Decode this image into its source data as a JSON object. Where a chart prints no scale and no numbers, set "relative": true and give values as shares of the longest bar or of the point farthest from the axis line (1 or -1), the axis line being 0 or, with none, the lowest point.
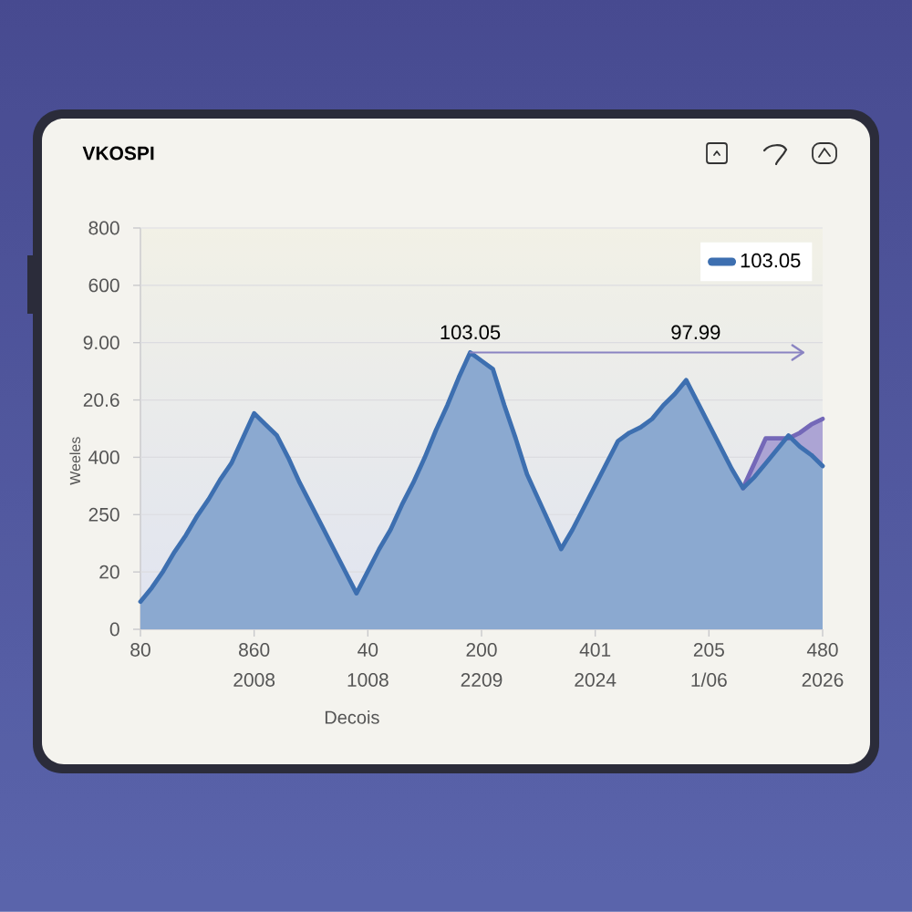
{
  "chart_data": {
    "type": "area",
    "relative": true,
    "title": "VKOSPI",
    "xlabel": "Decois",
    "ylabel": "Weeles",
    "categories": [
      "80",
      null,
      null,
      null,
      null,
      null,
      null,
      null,
      null,
      null,
      "860 2008",
      null,
      null,
      null,
      null,
      null,
      null,
      null,
      null,
      null,
      "40 1008",
      null,
      null,
      null,
      null,
      null,
      null,
      null,
      null,
      null,
      "200 2209",
      null,
      null,
      null,
      null,
      null,
      null,
      null,
      null,
      null,
      "401 2024",
      null,
      null,
      null,
      null,
      null,
      null,
      null,
      null,
      null,
      "205 1/06",
      null,
      null,
      null,
      null,
      null,
      null,
      null,
      null,
      null,
      "480 2026"
    ],
    "grid": "y",
    "legend": "top right",
    "series": [
      {
        "color": "#7468b8",
        "values": [
          null,
          null,
          null,
          null,
          null,
          null,
          null,
          null,
          null,
          null,
          null,
          null,
          null,
          null,
          null,
          null,
          null,
          null,
          null,
          null,
          null,
          null,
          null,
          null,
          null,
          null,
          null,
          null,
          null,
          null,
          null,
          null,
          null,
          null,
          null,
          null,
          null,
          null,
          null,
          null,
          null,
          null,
          null,
          null,
          null,
          null,
          null,
          null,
          null,
          null,
          null,
          null,
          null,
          0.51,
          0.6,
          0.69,
          0.69,
          0.69,
          0.71,
          0.74,
          0.76
        ]
      },
      {
        "name": "103.05",
        "color": "#3d6fb0",
        "values": [
          0.1,
          0.15,
          0.21,
          0.28,
          0.34,
          0.41,
          0.47,
          0.54,
          0.6,
          0.69,
          0.78,
          0.74,
          0.7,
          0.62,
          0.53,
          0.45,
          0.37,
          0.29,
          0.21,
          0.13,
          0.21,
          0.29,
          0.36,
          0.45,
          0.53,
          0.62,
          0.72,
          0.81,
          0.91,
          1.0,
          0.97,
          0.94,
          0.81,
          0.69,
          0.56,
          0.47,
          0.38,
          0.29,
          0.36,
          0.44,
          0.52,
          0.6,
          0.68,
          0.71,
          0.73,
          0.76,
          0.81,
          0.85,
          0.9,
          0.82,
          0.74,
          0.66,
          0.58,
          0.51,
          0.55,
          0.6,
          0.65,
          0.7,
          0.66,
          0.63,
          0.59
        ]
      }
    ],
    "annotations": [
      "103.05",
      "97.99",
      "800",
      "600",
      "9.00",
      "20.6",
      "400",
      "250",
      "20",
      "0"
    ]
  }
}
